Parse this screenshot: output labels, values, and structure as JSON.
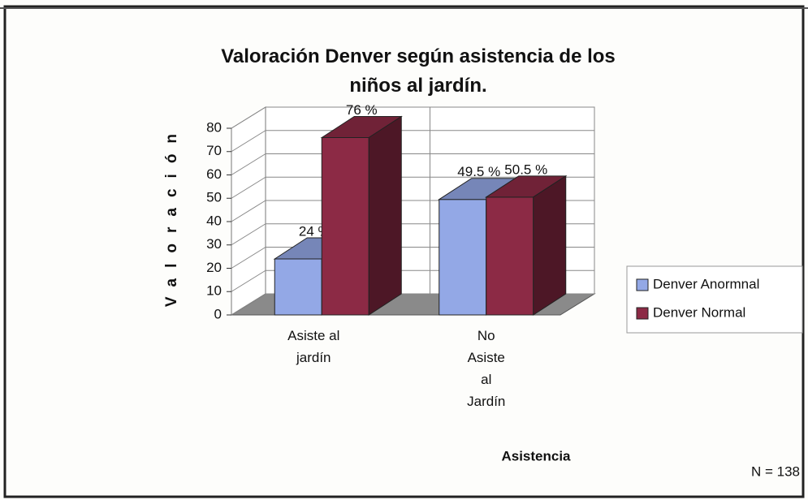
{
  "chart_data": {
    "type": "bar3d",
    "title": "Valoración  Denver según asistencia de los niños  al jardín.",
    "categories": [
      "Asiste al jardín",
      "No Asiste al Jardín"
    ],
    "series": [
      {
        "name": "Denver Anormnal",
        "color": "#93a8e6",
        "values": [
          24,
          49.5
        ],
        "value_labels": [
          "24 %",
          "49.5 %"
        ]
      },
      {
        "name": "Denver Normal",
        "color": "#8c2a45",
        "values": [
          76,
          50.5
        ],
        "value_labels": [
          "76 %",
          "50.5 %"
        ]
      }
    ],
    "ylabel": "Valoración",
    "xlabel": "Asistencia",
    "ylim": [
      0,
      80
    ],
    "yticks": [
      0,
      10,
      20,
      30,
      40,
      50,
      60,
      70,
      80
    ],
    "grid": true,
    "legend": "right",
    "note": "N = 138"
  }
}
